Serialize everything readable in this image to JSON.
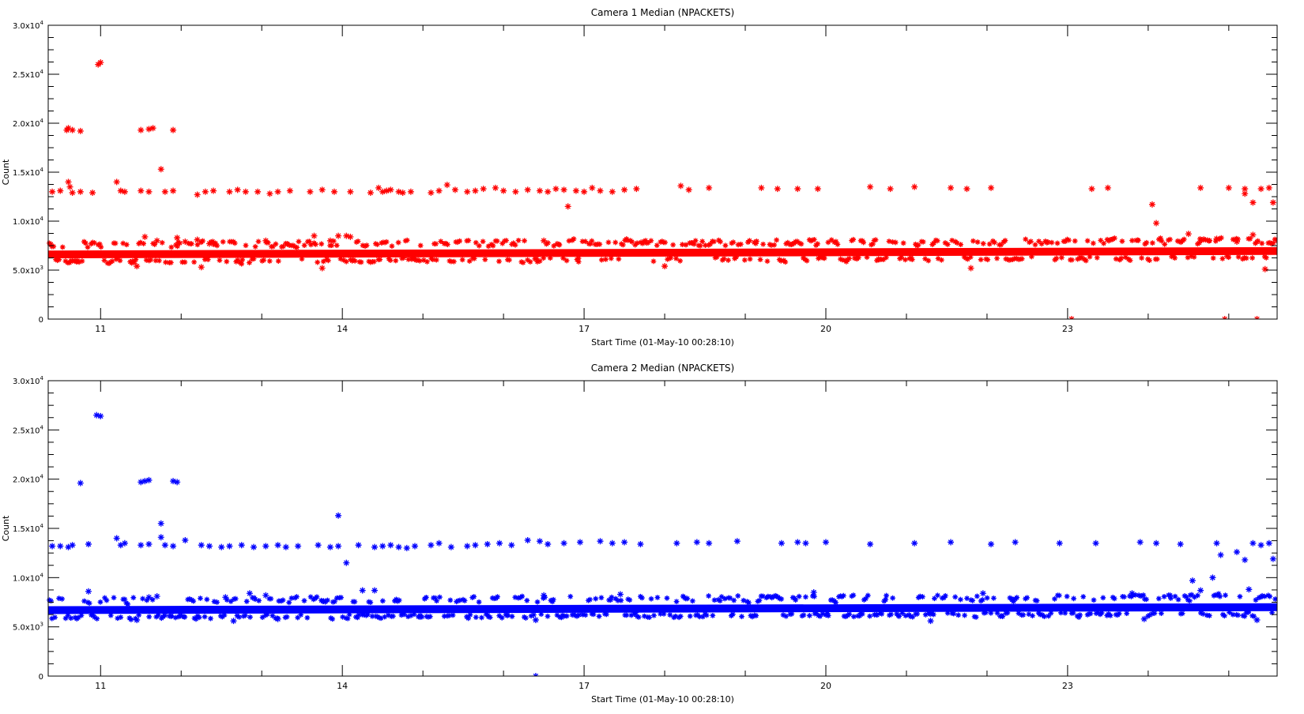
{
  "chart_data": [
    {
      "type": "scatter",
      "title": "Camera 1 Median (NPACKETS)",
      "xlabel": "Start Time (01-May-10 00:28:10)",
      "ylabel": "Count",
      "xlim": [
        10.35,
        25.6
      ],
      "ylim": [
        0,
        30000
      ],
      "x_ticks": [
        11,
        14,
        17,
        20,
        23
      ],
      "x_tick_labels": [
        "11",
        "14",
        "17",
        "20",
        "23"
      ],
      "y_ticks": [
        0,
        5000,
        10000,
        15000,
        20000,
        25000,
        30000
      ],
      "y_tick_labels": [
        {
          "mant": "0",
          "exp": ""
        },
        {
          "mant": "5.0x10",
          "exp": "3"
        },
        {
          "mant": "1.0x10",
          "exp": "4"
        },
        {
          "mant": "1.5x10",
          "exp": "4"
        },
        {
          "mant": "2.0x10",
          "exp": "4"
        },
        {
          "mant": "2.5x10",
          "exp": "4"
        },
        {
          "mant": "3.0x10",
          "exp": "4"
        }
      ],
      "color": "#ff0000",
      "marker": "*",
      "grid": false,
      "baseline": {
        "start": 6600,
        "end": 6950,
        "spread": 250
      },
      "series": [
        {
          "points": [
            [
              10.4,
              13000
            ],
            [
              10.5,
              13100
            ],
            [
              10.6,
              14000
            ],
            [
              10.62,
              13500
            ],
            [
              10.58,
              19300
            ],
            [
              10.6,
              19500
            ],
            [
              10.65,
              19300
            ],
            [
              10.75,
              19200
            ],
            [
              10.65,
              12900
            ],
            [
              10.75,
              13000
            ],
            [
              10.9,
              12900
            ],
            [
              10.97,
              26000
            ],
            [
              11.0,
              26200
            ],
            [
              11.2,
              14000
            ],
            [
              11.25,
              13100
            ],
            [
              11.3,
              13000
            ],
            [
              11.5,
              19300
            ],
            [
              11.6,
              19400
            ],
            [
              11.65,
              19500
            ],
            [
              11.5,
              13100
            ],
            [
              11.6,
              13000
            ],
            [
              11.75,
              15300
            ],
            [
              11.9,
              19300
            ],
            [
              11.8,
              13000
            ],
            [
              11.9,
              13100
            ],
            [
              12.2,
              12700
            ],
            [
              12.3,
              13000
            ],
            [
              12.4,
              13100
            ],
            [
              12.6,
              13000
            ],
            [
              12.7,
              13200
            ],
            [
              12.8,
              13000
            ],
            [
              12.95,
              13000
            ],
            [
              13.1,
              12800
            ],
            [
              13.2,
              13000
            ],
            [
              13.35,
              13100
            ],
            [
              13.6,
              13000
            ],
            [
              13.75,
              13200
            ],
            [
              13.9,
              13000
            ],
            [
              14.1,
              13000
            ],
            [
              14.35,
              12900
            ],
            [
              14.45,
              13400
            ],
            [
              14.5,
              13000
            ],
            [
              14.55,
              13100
            ],
            [
              14.6,
              13200
            ],
            [
              14.7,
              13000
            ],
            [
              14.75,
              12900
            ],
            [
              14.85,
              13000
            ],
            [
              15.1,
              12900
            ],
            [
              15.2,
              13100
            ],
            [
              15.3,
              13700
            ],
            [
              15.4,
              13200
            ],
            [
              15.55,
              13000
            ],
            [
              15.65,
              13100
            ],
            [
              15.75,
              13300
            ],
            [
              15.9,
              13400
            ],
            [
              16.0,
              13100
            ],
            [
              16.15,
              13000
            ],
            [
              16.3,
              13200
            ],
            [
              16.45,
              13100
            ],
            [
              16.55,
              13000
            ],
            [
              16.65,
              13300
            ],
            [
              16.75,
              13200
            ],
            [
              16.8,
              11500
            ],
            [
              16.9,
              13100
            ],
            [
              17.0,
              13000
            ],
            [
              17.1,
              13400
            ],
            [
              17.2,
              13100
            ],
            [
              17.35,
              13000
            ],
            [
              17.5,
              13200
            ],
            [
              17.65,
              13300
            ],
            [
              18.2,
              13600
            ],
            [
              18.3,
              13200
            ],
            [
              18.55,
              13400
            ],
            [
              19.2,
              13400
            ],
            [
              19.4,
              13300
            ],
            [
              19.65,
              13300
            ],
            [
              19.9,
              13300
            ],
            [
              20.55,
              13500
            ],
            [
              20.8,
              13300
            ],
            [
              21.1,
              13500
            ],
            [
              21.55,
              13400
            ],
            [
              21.75,
              13300
            ],
            [
              22.05,
              13400
            ],
            [
              23.3,
              13300
            ],
            [
              23.5,
              13400
            ],
            [
              24.05,
              11700
            ],
            [
              24.1,
              9800
            ],
            [
              24.65,
              13400
            ],
            [
              25.0,
              13400
            ],
            [
              25.2,
              13300
            ],
            [
              25.4,
              13300
            ],
            [
              25.2,
              12800
            ],
            [
              25.3,
              11900
            ],
            [
              25.5,
              13400
            ],
            [
              25.55,
              11900
            ],
            [
              11.55,
              8400
            ],
            [
              11.7,
              8000
            ],
            [
              11.95,
              8300
            ],
            [
              12.05,
              7900
            ],
            [
              12.2,
              8100
            ],
            [
              12.35,
              7700
            ],
            [
              13.05,
              8000
            ],
            [
              13.65,
              8500
            ],
            [
              13.95,
              8500
            ],
            [
              14.05,
              8500
            ],
            [
              14.1,
              8400
            ],
            [
              13.85,
              8000
            ],
            [
              16.5,
              8000
            ],
            [
              24.5,
              8700
            ],
            [
              25.3,
              8600
            ],
            [
              24.85,
              8200
            ],
            [
              25.1,
              7900
            ],
            [
              23.05,
              0
            ],
            [
              24.95,
              0
            ],
            [
              25.35,
              0
            ],
            [
              12.25,
              5300
            ],
            [
              11.45,
              5400
            ],
            [
              13.75,
              5200
            ],
            [
              18.0,
              5400
            ],
            [
              21.8,
              5200
            ],
            [
              25.45,
              5100
            ]
          ]
        }
      ]
    },
    {
      "type": "scatter",
      "title": "Camera 2 Median (NPACKETS)",
      "xlabel": "Start Time (01-May-10 00:28:10)",
      "ylabel": "Count",
      "xlim": [
        10.35,
        25.6
      ],
      "ylim": [
        0,
        30000
      ],
      "x_ticks": [
        11,
        14,
        17,
        20,
        23
      ],
      "x_tick_labels": [
        "11",
        "14",
        "17",
        "20",
        "23"
      ],
      "y_ticks": [
        0,
        5000,
        10000,
        15000,
        20000,
        25000,
        30000
      ],
      "y_tick_labels": [
        {
          "mant": "0",
          "exp": ""
        },
        {
          "mant": "5.0x10",
          "exp": "3"
        },
        {
          "mant": "1.0x10",
          "exp": "4"
        },
        {
          "mant": "1.5x10",
          "exp": "4"
        },
        {
          "mant": "2.0x10",
          "exp": "4"
        },
        {
          "mant": "2.5x10",
          "exp": "4"
        },
        {
          "mant": "3.0x10",
          "exp": "4"
        }
      ],
      "color": "#0000ff",
      "marker": "*",
      "grid": false,
      "baseline": {
        "start": 6700,
        "end": 7000,
        "spread": 250
      },
      "series": [
        {
          "points": [
            [
              10.4,
              13200
            ],
            [
              10.5,
              13200
            ],
            [
              10.6,
              13100
            ],
            [
              10.65,
              13300
            ],
            [
              10.75,
              19600
            ],
            [
              10.85,
              13400
            ],
            [
              10.95,
              26500
            ],
            [
              11.0,
              26400
            ],
            [
              11.2,
              14000
            ],
            [
              11.25,
              13300
            ],
            [
              11.3,
              13500
            ],
            [
              11.5,
              19700
            ],
            [
              11.55,
              19800
            ],
            [
              11.6,
              19900
            ],
            [
              11.5,
              13300
            ],
            [
              11.6,
              13400
            ],
            [
              11.75,
              15500
            ],
            [
              11.75,
              14100
            ],
            [
              11.9,
              19800
            ],
            [
              11.95,
              19700
            ],
            [
              11.8,
              13300
            ],
            [
              11.9,
              13200
            ],
            [
              12.05,
              13800
            ],
            [
              12.25,
              13300
            ],
            [
              12.35,
              13200
            ],
            [
              12.5,
              13100
            ],
            [
              12.6,
              13200
            ],
            [
              12.75,
              13300
            ],
            [
              12.9,
              13100
            ],
            [
              13.05,
              13200
            ],
            [
              13.2,
              13300
            ],
            [
              13.3,
              13100
            ],
            [
              13.45,
              13200
            ],
            [
              13.7,
              13300
            ],
            [
              13.85,
              13100
            ],
            [
              13.95,
              16300
            ],
            [
              13.95,
              13200
            ],
            [
              14.05,
              11500
            ],
            [
              14.2,
              13300
            ],
            [
              14.4,
              13100
            ],
            [
              14.5,
              13200
            ],
            [
              14.6,
              13300
            ],
            [
              14.7,
              13100
            ],
            [
              14.8,
              13000
            ],
            [
              14.9,
              13200
            ],
            [
              15.1,
              13300
            ],
            [
              15.2,
              13500
            ],
            [
              15.35,
              13100
            ],
            [
              15.55,
              13200
            ],
            [
              15.65,
              13300
            ],
            [
              15.8,
              13400
            ],
            [
              15.95,
              13500
            ],
            [
              16.1,
              13300
            ],
            [
              16.3,
              13800
            ],
            [
              16.45,
              13700
            ],
            [
              16.55,
              13400
            ],
            [
              16.75,
              13500
            ],
            [
              16.95,
              13600
            ],
            [
              17.2,
              13700
            ],
            [
              17.35,
              13500
            ],
            [
              17.5,
              13600
            ],
            [
              17.7,
              13400
            ],
            [
              18.15,
              13500
            ],
            [
              18.4,
              13600
            ],
            [
              18.55,
              13500
            ],
            [
              18.9,
              13700
            ],
            [
              19.45,
              13500
            ],
            [
              19.65,
              13600
            ],
            [
              19.75,
              13500
            ],
            [
              20.0,
              13600
            ],
            [
              20.55,
              13400
            ],
            [
              21.1,
              13500
            ],
            [
              21.55,
              13600
            ],
            [
              22.05,
              13400
            ],
            [
              22.35,
              13600
            ],
            [
              22.9,
              13500
            ],
            [
              23.35,
              13500
            ],
            [
              23.9,
              13600
            ],
            [
              24.1,
              13500
            ],
            [
              24.4,
              13400
            ],
            [
              24.55,
              9700
            ],
            [
              24.8,
              10000
            ],
            [
              24.85,
              13500
            ],
            [
              24.9,
              12300
            ],
            [
              25.3,
              13500
            ],
            [
              25.4,
              13300
            ],
            [
              25.5,
              13500
            ],
            [
              25.1,
              12600
            ],
            [
              25.2,
              11800
            ],
            [
              25.55,
              11900
            ],
            [
              13.05,
              8200
            ],
            [
              11.7,
              8100
            ],
            [
              12.55,
              8000
            ],
            [
              14.25,
              8700
            ],
            [
              14.4,
              8700
            ],
            [
              11.6,
              8000
            ],
            [
              12.85,
              8400
            ],
            [
              10.85,
              8600
            ],
            [
              24.65,
              8700
            ],
            [
              25.25,
              8800
            ],
            [
              21.95,
              8400
            ],
            [
              16.5,
              8200
            ],
            [
              17.45,
              8300
            ],
            [
              19.85,
              8500
            ],
            [
              23.8,
              8400
            ],
            [
              11.45,
              5700
            ],
            [
              12.65,
              5600
            ],
            [
              13.2,
              5800
            ],
            [
              16.4,
              5700
            ],
            [
              21.3,
              5600
            ],
            [
              23.95,
              5800
            ],
            [
              25.35,
              5700
            ],
            [
              16.4,
              0
            ]
          ]
        }
      ]
    }
  ]
}
